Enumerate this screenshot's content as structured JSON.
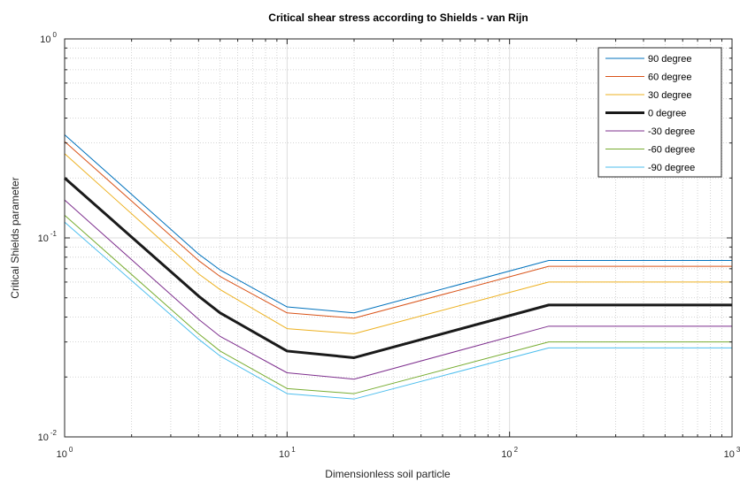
{
  "chart_data": {
    "type": "line",
    "title": "Critical shear stress according to Shields - van Rijn",
    "xlabel": "Dimensionless soil particle",
    "ylabel": "Critical Shields parameter",
    "x_scale": "log",
    "y_scale": "log",
    "xlim": [
      1,
      1000
    ],
    "ylim": [
      0.01,
      1
    ],
    "x_ticks": [
      {
        "value": 1,
        "base": "10",
        "exp": "0"
      },
      {
        "value": 10,
        "base": "10",
        "exp": "1"
      },
      {
        "value": 100,
        "base": "10",
        "exp": "2"
      },
      {
        "value": 1000,
        "base": "10",
        "exp": "3"
      }
    ],
    "y_ticks": [
      {
        "value": 0.01,
        "base": "10",
        "exp": "-2"
      },
      {
        "value": 0.1,
        "base": "10",
        "exp": "-1"
      },
      {
        "value": 1,
        "base": "10",
        "exp": "0"
      }
    ],
    "grid": true,
    "legend_position": "top-right",
    "x": [
      1,
      4,
      5,
      10,
      20,
      150,
      1000
    ],
    "series": [
      {
        "name": "90 degree",
        "color": "#0072BD",
        "width": 1,
        "values": [
          0.33,
          0.083,
          0.069,
          0.045,
          0.042,
          0.077,
          0.077
        ]
      },
      {
        "name": "60 degree",
        "color": "#D95319",
        "width": 1,
        "values": [
          0.305,
          0.077,
          0.064,
          0.042,
          0.0395,
          0.072,
          0.072
        ]
      },
      {
        "name": "30 degree",
        "color": "#EDB120",
        "width": 1,
        "values": [
          0.265,
          0.066,
          0.055,
          0.035,
          0.033,
          0.06,
          0.06
        ]
      },
      {
        "name": "0 degree",
        "color": "#1a1a1a",
        "width": 3,
        "values": [
          0.2,
          0.051,
          0.042,
          0.027,
          0.025,
          0.046,
          0.046
        ]
      },
      {
        "name": "-30 degree",
        "color": "#7E2F8E",
        "width": 1,
        "values": [
          0.155,
          0.039,
          0.032,
          0.021,
          0.0195,
          0.036,
          0.036
        ]
      },
      {
        "name": "-60 degree",
        "color": "#77AC30",
        "width": 1,
        "values": [
          0.13,
          0.033,
          0.027,
          0.0175,
          0.0165,
          0.03,
          0.03
        ]
      },
      {
        "name": "-90 degree",
        "color": "#4DBEEE",
        "width": 1,
        "values": [
          0.12,
          0.031,
          0.0255,
          0.0165,
          0.0155,
          0.028,
          0.028
        ]
      }
    ]
  }
}
